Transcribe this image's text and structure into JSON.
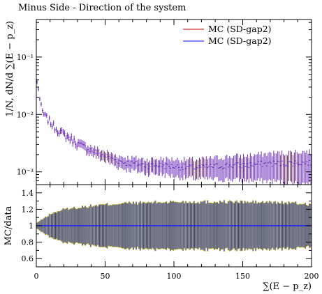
{
  "title": "Minus Side - Direction of the system",
  "chart_data": [
    {
      "type": "line",
      "title": "Minus Side - Direction of the system",
      "ylabel": "1/N, dN/d ∑(E − p_z)",
      "xlim": [
        0,
        200
      ],
      "ylim": [
        0.0006,
        0.45
      ],
      "yscale": "log",
      "y_tick_labels": [
        "10⁻³",
        "10⁻²",
        "10⁻¹"
      ],
      "y_tick_values": [
        0.001,
        0.01,
        0.1
      ],
      "legend_position": "top-right",
      "series": [
        {
          "name": "MC (SD-gap2)",
          "color": "#cc0000"
        },
        {
          "name": "MC (SD-gap2)",
          "color": "#0000ff"
        }
      ],
      "x": [
        1,
        2,
        3,
        4,
        5,
        6,
        8,
        10,
        12,
        15,
        20,
        25,
        30,
        35,
        40,
        45,
        50,
        55,
        60,
        65,
        70,
        80,
        90,
        100,
        110,
        120,
        130,
        140,
        150,
        160,
        170,
        180,
        190,
        199
      ],
      "values": [
        0.036,
        0.022,
        0.015,
        0.012,
        0.0105,
        0.0095,
        0.0085,
        0.0075,
        0.0065,
        0.0055,
        0.0045,
        0.0038,
        0.0031,
        0.0027,
        0.0024,
        0.0021,
        0.0019,
        0.0017,
        0.00155,
        0.00145,
        0.0014,
        0.0013,
        0.0013,
        0.00125,
        0.0012,
        0.0012,
        0.00125,
        0.0013,
        0.0013,
        0.00135,
        0.0014,
        0.0014,
        0.00145,
        0.00145
      ]
    },
    {
      "type": "line",
      "ylabel": "MC/data",
      "xlabel": "∑(E − p_z)",
      "xlim": [
        0,
        200
      ],
      "ylim": [
        0.5,
        1.5
      ],
      "y_tick_labels": [
        "0.6",
        "0.8",
        "1",
        "1.2",
        "1.4"
      ],
      "y_tick_values": [
        0.6,
        0.8,
        1.0,
        1.2,
        1.4
      ],
      "x_tick_labels": [
        "0",
        "50",
        "100",
        "150",
        "200"
      ],
      "x_tick_values": [
        0,
        50,
        100,
        150,
        200
      ],
      "ratio": 1.0,
      "band_color": "#6e7393",
      "band_half_width": {
        "x": [
          0,
          10,
          20,
          40,
          60,
          100,
          140,
          180,
          200
        ],
        "values": [
          0.03,
          0.14,
          0.2,
          0.24,
          0.27,
          0.29,
          0.29,
          0.28,
          0.26
        ]
      }
    }
  ]
}
